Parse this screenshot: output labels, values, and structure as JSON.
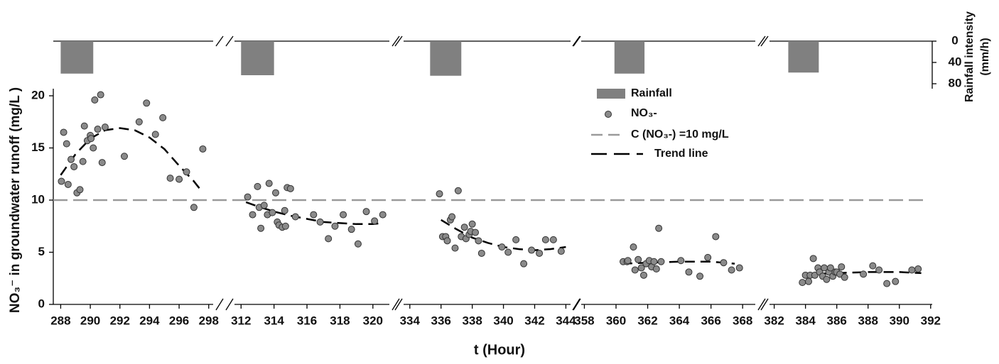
{
  "chart_data": {
    "type": "scatter",
    "xlabel": "t (Hour)",
    "ylabel": "NO₃⁻ in groundwater runoff (mg/L )",
    "y2label": [
      "Rainfall intensity",
      "(mm/h)"
    ],
    "ylim": [
      0,
      20
    ],
    "yticks": [
      0,
      5,
      10,
      15,
      20
    ],
    "y2lim": [
      0,
      80
    ],
    "y2ticks": [
      0,
      40,
      80
    ],
    "series": [
      {
        "name": "Rainfall",
        "color": "#808080"
      },
      {
        "name": "NO₃-",
        "color": "#8a8a8a"
      },
      {
        "name": "C (NO₃-) =10 mg/L",
        "color": "#9a9a9a",
        "value": 10
      },
      {
        "name": "Trend line",
        "color": "#000000"
      }
    ],
    "panels": [
      {
        "xlim": [
          287.5,
          298.3
        ],
        "xticks": [
          288,
          290,
          292,
          294,
          296,
          298
        ],
        "rainfall": {
          "x": [
            288.0,
            290.2
          ],
          "value": 61
        },
        "no3": {
          "x": [
            288.05,
            288.2,
            288.4,
            288.5,
            288.7,
            288.9,
            289.1,
            289.3,
            289.5,
            289.6,
            289.8,
            290.0,
            290.05,
            290.2,
            290.3,
            290.5,
            290.7,
            290.8,
            291.0,
            292.3,
            293.3,
            293.8,
            294.4,
            294.9,
            295.4,
            296.0,
            296.5,
            297.0,
            297.6
          ],
          "values": [
            11.8,
            16.5,
            15.4,
            11.5,
            13.9,
            13.2,
            10.7,
            11.0,
            13.7,
            17.1,
            15.7,
            16.2,
            15.9,
            15.0,
            19.6,
            16.8,
            20.1,
            13.6,
            17.0,
            14.2,
            17.5,
            19.3,
            16.3,
            17.9,
            12.1,
            12.0,
            12.7,
            9.3,
            14.9
          ]
        },
        "trend": {
          "x": [
            288,
            289,
            290,
            291,
            292,
            293,
            294,
            295,
            296,
            297,
            297.5
          ],
          "values": [
            12.4,
            14.4,
            15.9,
            16.7,
            16.9,
            16.7,
            16.0,
            14.9,
            13.3,
            11.8,
            10.9
          ]
        }
      },
      {
        "xlim": [
          311.6,
          321.0
        ],
        "xticks": [
          312,
          314,
          316,
          318,
          320
        ],
        "rainfall": {
          "x": [
            312.0,
            314.0
          ],
          "value": 64
        },
        "no3": {
          "x": [
            312.4,
            312.7,
            313.0,
            313.1,
            313.2,
            313.4,
            313.6,
            313.7,
            313.9,
            314.1,
            314.2,
            314.3,
            314.5,
            314.65,
            314.7,
            314.8,
            315.0,
            315.3,
            316.4,
            316.8,
            317.3,
            317.7,
            318.2,
            318.7,
            319.1,
            319.6,
            320.1,
            320.6
          ],
          "values": [
            10.3,
            8.6,
            11.3,
            9.3,
            7.3,
            9.5,
            8.6,
            11.6,
            8.8,
            10.7,
            7.9,
            7.6,
            7.4,
            9.0,
            7.5,
            11.2,
            11.1,
            8.4,
            8.6,
            7.9,
            6.3,
            7.5,
            8.6,
            7.2,
            5.8,
            8.9,
            8.0,
            8.6
          ]
        },
        "trend": {
          "x": [
            312.3,
            313,
            314,
            315,
            316,
            317,
            318,
            319,
            320,
            320.6
          ],
          "values": [
            9.8,
            9.4,
            8.9,
            8.5,
            8.2,
            7.9,
            7.8,
            7.7,
            7.7,
            7.8
          ]
        }
      },
      {
        "xlim": [
          333.6,
          344.3
        ],
        "xticks": [
          334,
          336,
          338,
          340,
          342,
          344
        ],
        "rainfall": {
          "x": [
            335.3,
            337.3
          ],
          "value": 65
        },
        "no3": {
          "x": [
            335.9,
            336.1,
            336.3,
            336.4,
            336.6,
            336.7,
            336.9,
            337.1,
            337.3,
            337.5,
            337.6,
            337.8,
            337.9,
            338.0,
            338.2,
            338.4,
            338.6,
            339.9,
            340.3,
            340.8,
            341.3,
            341.8,
            342.3,
            342.7,
            343.2,
            343.7
          ],
          "values": [
            10.6,
            6.5,
            6.5,
            6.1,
            8.1,
            8.4,
            5.4,
            10.9,
            6.5,
            7.4,
            6.3,
            6.7,
            7.0,
            7.7,
            6.9,
            6.1,
            4.9,
            5.5,
            5.0,
            6.2,
            3.9,
            5.2,
            4.9,
            6.2,
            6.2,
            5.1
          ]
        },
        "trend": {
          "x": [
            336,
            337,
            338,
            339,
            340,
            341,
            342,
            343,
            344
          ],
          "values": [
            8.1,
            7.2,
            6.4,
            5.9,
            5.5,
            5.3,
            5.2,
            5.3,
            5.5
          ]
        }
      },
      {
        "xlim": [
          357.8,
          368.8
        ],
        "xticks": [
          358,
          360,
          362,
          364,
          366,
          368
        ],
        "rainfall": {
          "x": [
            359.9,
            361.8
          ],
          "value": 61
        },
        "no3": {
          "x": [
            360.45,
            360.7,
            360.75,
            361.1,
            361.2,
            361.4,
            361.6,
            361.75,
            361.9,
            362.1,
            362.25,
            362.4,
            362.55,
            362.7,
            362.85,
            364.1,
            364.6,
            365.3,
            365.8,
            366.3,
            366.8,
            367.3,
            367.8
          ],
          "values": [
            4.1,
            4.1,
            4.2,
            5.5,
            3.3,
            4.3,
            3.5,
            2.8,
            3.9,
            4.2,
            3.6,
            4.1,
            3.4,
            7.3,
            4.1,
            4.2,
            3.1,
            2.7,
            4.5,
            6.5,
            4.0,
            3.3,
            3.5
          ]
        },
        "trend": {
          "x": [
            360.4,
            362,
            364,
            366,
            367.5
          ],
          "values": [
            3.9,
            4.0,
            4.1,
            4.1,
            3.9
          ]
        }
      },
      {
        "xlim": [
          381.7,
          392.1
        ],
        "xticks": [
          382,
          384,
          386,
          388,
          390,
          392
        ],
        "rainfall": {
          "x": [
            382.9,
            384.85
          ],
          "value": 59
        },
        "no3": {
          "x": [
            383.8,
            384.0,
            384.2,
            384.3,
            384.5,
            384.6,
            384.8,
            384.9,
            385.1,
            385.2,
            385.35,
            385.5,
            385.6,
            385.75,
            385.9,
            386.0,
            386.2,
            386.3,
            386.5,
            387.7,
            388.3,
            388.7,
            389.2,
            389.75,
            390.8,
            391.2
          ],
          "values": [
            2.1,
            2.8,
            2.2,
            2.8,
            4.4,
            2.8,
            3.5,
            3.1,
            2.7,
            3.5,
            2.4,
            3.1,
            3.5,
            2.7,
            3.1,
            3.1,
            2.9,
            3.6,
            2.6,
            2.9,
            3.7,
            3.3,
            2.0,
            2.2,
            3.3,
            3.4
          ]
        },
        "trend": {
          "x": [
            384,
            386,
            388,
            390,
            391.4
          ],
          "values": [
            2.9,
            3.0,
            3.1,
            3.1,
            3.0
          ]
        }
      }
    ]
  }
}
